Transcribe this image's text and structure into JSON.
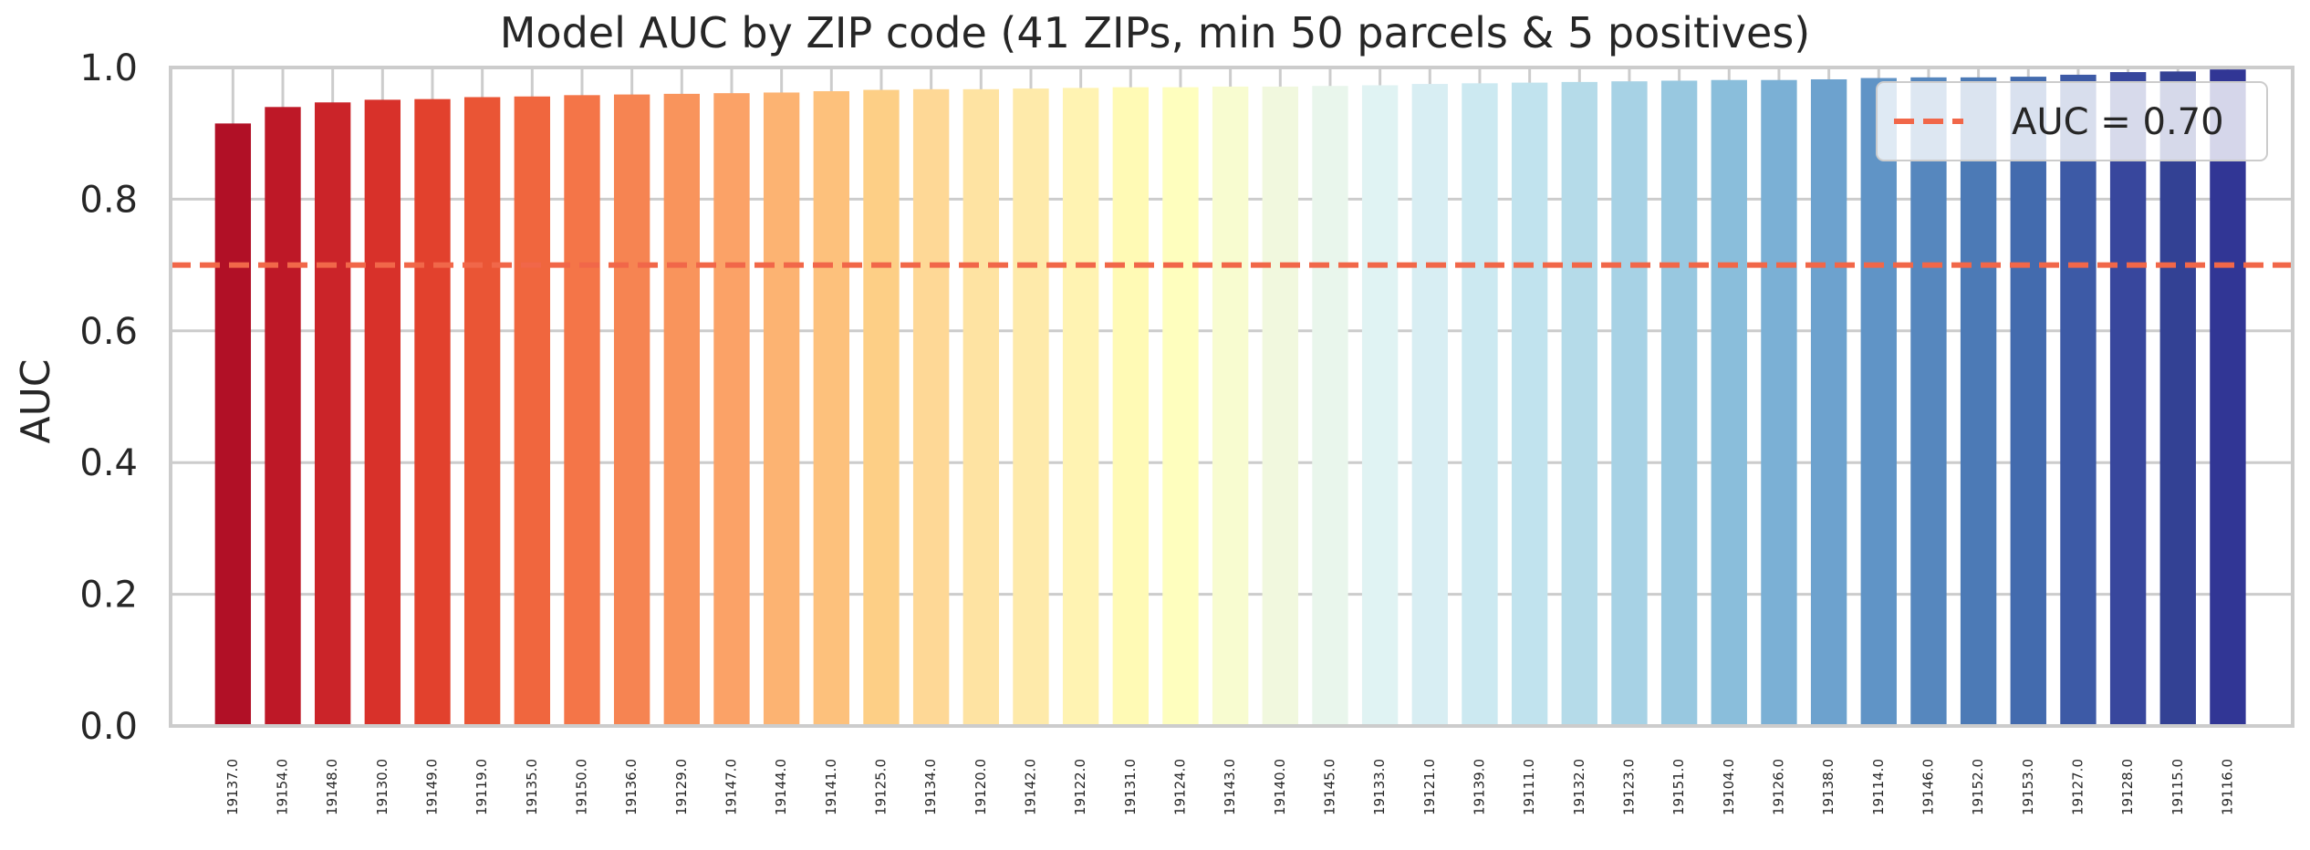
{
  "chart_data": {
    "type": "bar",
    "title": "Model AUC by ZIP code  (41 ZIPs, min 50 parcels & 5 positives)",
    "xlabel": "",
    "ylabel": "AUC",
    "ylim": [
      0.0,
      1.0
    ],
    "yticks": [
      0.0,
      0.2,
      0.4,
      0.6,
      0.8,
      1.0
    ],
    "ytick_labels": [
      "0.0",
      "0.2",
      "0.4",
      "0.6",
      "0.8",
      "1.0"
    ],
    "grid": true,
    "legend_position": "top-right",
    "categories": [
      "19137.0",
      "19154.0",
      "19148.0",
      "19130.0",
      "19149.0",
      "19119.0",
      "19135.0",
      "19150.0",
      "19136.0",
      "19129.0",
      "19147.0",
      "19144.0",
      "19141.0",
      "19125.0",
      "19134.0",
      "19120.0",
      "19142.0",
      "19122.0",
      "19131.0",
      "19124.0",
      "19143.0",
      "19140.0",
      "19145.0",
      "19133.0",
      "19121.0",
      "19139.0",
      "19111.0",
      "19132.0",
      "19123.0",
      "19151.0",
      "19104.0",
      "19126.0",
      "19138.0",
      "19114.0",
      "19146.0",
      "19152.0",
      "19153.0",
      "19127.0",
      "19128.0",
      "19115.0",
      "19116.0"
    ],
    "values": [
      0.915,
      0.94,
      0.947,
      0.951,
      0.952,
      0.955,
      0.956,
      0.958,
      0.959,
      0.96,
      0.961,
      0.962,
      0.964,
      0.966,
      0.967,
      0.967,
      0.968,
      0.969,
      0.97,
      0.97,
      0.971,
      0.971,
      0.972,
      0.973,
      0.975,
      0.976,
      0.977,
      0.978,
      0.979,
      0.98,
      0.981,
      0.981,
      0.982,
      0.984,
      0.985,
      0.985,
      0.986,
      0.989,
      0.993,
      0.994,
      0.997
    ],
    "colors": [
      "#b11026",
      "#be1827",
      "#cb2429",
      "#d8312a",
      "#e2412d",
      "#ea5535",
      "#f0663e",
      "#f47548",
      "#f68452",
      "#f9945c",
      "#fba267",
      "#fcb372",
      "#fdc17c",
      "#fdcf86",
      "#fed896",
      "#fee3a2",
      "#feeaaa",
      "#fff3b2",
      "#fffab5",
      "#fefebe",
      "#f8fcd0",
      "#f1f8de",
      "#e9f6ec",
      "#e0f3f3",
      "#d8eef3",
      "#cce9f1",
      "#c1e3ee",
      "#b5dbe9",
      "#a7d2e5",
      "#98c8e0",
      "#8abedb",
      "#7bb0d5",
      "#6da2ce",
      "#6094c6",
      "#5687be",
      "#4c7ab6",
      "#436bae",
      "#3d5aa6",
      "#38479d",
      "#334194",
      "#313695"
    ],
    "reference_line": {
      "value": 0.7,
      "label": "AUC = 0.70",
      "color": "#f16749"
    }
  }
}
